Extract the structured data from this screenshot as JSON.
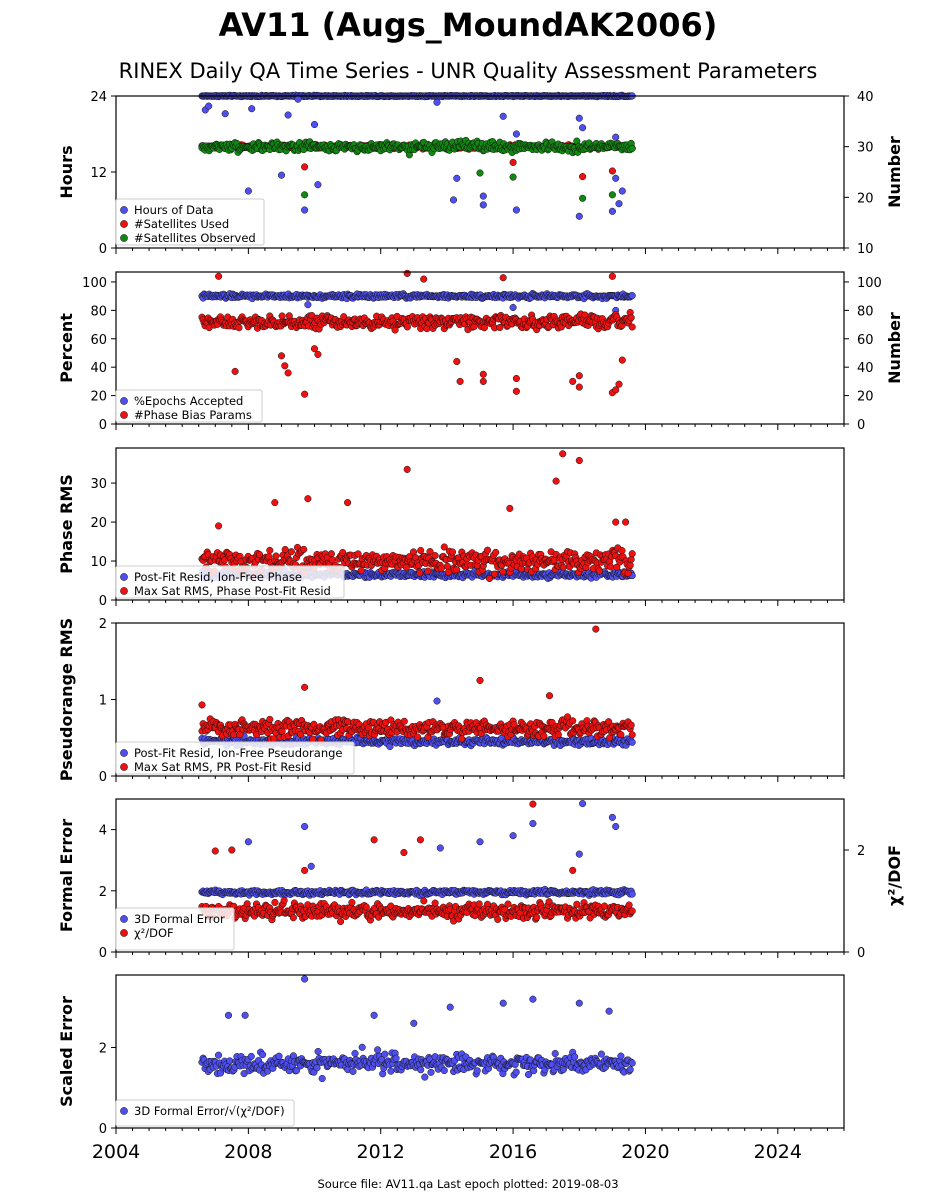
{
  "title": "AV11 (Augs_MoundAK2006)",
  "subtitle": "RINEX Daily QA Time Series - UNR Quality Assessment Parameters",
  "footer": "Source file: AV11.qa Last epoch plotted: 2019-08-03",
  "colors": {
    "blue": "#4f4ff0",
    "red": "#ee1111",
    "green": "#118811",
    "edge": "#111111"
  },
  "chart_data": [
    {
      "type": "scatter",
      "ylabel": "Hours",
      "ylabel_right": "Number",
      "xlim": [
        2004,
        2026
      ],
      "ylim": [
        0,
        24
      ],
      "ylim_right": [
        10,
        40
      ],
      "yticks": [
        0,
        12,
        24
      ],
      "yticks_right": [
        10,
        20,
        30,
        40
      ],
      "grid": false,
      "legend_position": "lower-left",
      "legend": [
        "Hours of Data",
        "#Satellites Used",
        "#Satellites Observed"
      ],
      "x_range": [
        2006.6,
        2019.6
      ],
      "series": [
        {
          "name": "Hours of Data",
          "color": "blue",
          "axis": "left",
          "typical": 24.0,
          "spread": 0.1,
          "outliers": [
            [
              2006.7,
              21.8
            ],
            [
              2006.8,
              22.4
            ],
            [
              2007.3,
              21.2
            ],
            [
              2008.0,
              9.0
            ],
            [
              2008.1,
              22.0
            ],
            [
              2009.0,
              11.5
            ],
            [
              2009.2,
              21.0
            ],
            [
              2009.5,
              23.5
            ],
            [
              2009.7,
              6.0
            ],
            [
              2010.0,
              19.5
            ],
            [
              2010.1,
              10.0
            ],
            [
              2013.7,
              23.0
            ],
            [
              2014.2,
              7.6
            ],
            [
              2014.3,
              11.0
            ],
            [
              2015.1,
              6.8
            ],
            [
              2015.1,
              8.2
            ],
            [
              2015.7,
              20.8
            ],
            [
              2016.1,
              6.0
            ],
            [
              2016.1,
              18.0
            ],
            [
              2018.0,
              20.5
            ],
            [
              2018.0,
              5.0
            ],
            [
              2018.1,
              19.0
            ],
            [
              2019.0,
              5.8
            ],
            [
              2019.1,
              11.0
            ],
            [
              2019.1,
              17.5
            ],
            [
              2019.2,
              7.0
            ],
            [
              2019.3,
              9.0
            ]
          ]
        },
        {
          "name": "#Satellites Used",
          "color": "red",
          "axis": "right",
          "typical": 30.0,
          "spread": 0.4,
          "outliers": [
            [
              2009.7,
              26.0
            ],
            [
              2016.0,
              26.9
            ],
            [
              2018.1,
              24.1
            ],
            [
              2019.0,
              25.2
            ]
          ]
        },
        {
          "name": "#Satellites Observed",
          "color": "green",
          "axis": "right",
          "typical": 30.0,
          "spread": 1.0,
          "outliers": [
            [
              2009.7,
              20.5
            ],
            [
              2015.0,
              24.8
            ],
            [
              2016.0,
              24.0
            ],
            [
              2018.1,
              19.8
            ],
            [
              2019.0,
              20.5
            ]
          ]
        }
      ]
    },
    {
      "type": "scatter",
      "ylabel": "Percent",
      "ylabel_right": "Number",
      "xlim": [
        2004,
        2026
      ],
      "ylim": [
        0,
        107
      ],
      "ylim_right": [
        0,
        107
      ],
      "yticks": [
        0,
        20,
        40,
        60,
        80,
        100
      ],
      "yticks_right": [
        0,
        20,
        40,
        60,
        80,
        100
      ],
      "grid": false,
      "legend_position": "lower-left",
      "legend": [
        "%Epochs Accepted",
        "#Phase Bias Params"
      ],
      "x_range": [
        2006.6,
        2019.6
      ],
      "series": [
        {
          "name": "%Epochs Accepted",
          "color": "blue",
          "axis": "left",
          "typical": 90,
          "spread": 1.5,
          "outliers": [
            [
              2009.8,
              84
            ],
            [
              2016.0,
              82
            ],
            [
              2019.1,
              80
            ]
          ]
        },
        {
          "name": "#Phase Bias Params",
          "color": "red",
          "axis": "right",
          "typical": 72,
          "spread": 5,
          "outliers": [
            [
              2007.1,
              104
            ],
            [
              2007.6,
              37
            ],
            [
              2009.0,
              48
            ],
            [
              2009.1,
              41
            ],
            [
              2009.2,
              36
            ],
            [
              2009.7,
              21
            ],
            [
              2010.0,
              53
            ],
            [
              2010.1,
              49
            ],
            [
              2012.8,
              106
            ],
            [
              2013.3,
              102
            ],
            [
              2014.3,
              44
            ],
            [
              2014.4,
              30
            ],
            [
              2015.1,
              35
            ],
            [
              2015.1,
              30
            ],
            [
              2015.7,
              103
            ],
            [
              2016.1,
              23
            ],
            [
              2016.1,
              32
            ],
            [
              2017.8,
              30
            ],
            [
              2018.0,
              34
            ],
            [
              2018.0,
              26
            ],
            [
              2019.0,
              104
            ],
            [
              2019.0,
              22
            ],
            [
              2019.1,
              24
            ],
            [
              2019.2,
              28
            ],
            [
              2019.3,
              45
            ]
          ]
        }
      ]
    },
    {
      "type": "scatter",
      "ylabel": "Phase RMS",
      "xlim": [
        2004,
        2026
      ],
      "ylim": [
        0,
        39
      ],
      "yticks": [
        0,
        10,
        20,
        30
      ],
      "grid": false,
      "legend_position": "lower-left",
      "legend": [
        "Post-Fit Resid, Ion-Free Phase",
        "Max Sat RMS, Phase Post-Fit Resid"
      ],
      "x_range": [
        2006.6,
        2019.6
      ],
      "series": [
        {
          "name": "Post-Fit Resid, Ion-Free Phase",
          "color": "blue",
          "typical": 6.5,
          "spread": 0.8,
          "outliers": []
        },
        {
          "name": "Max Sat RMS, Phase Post-Fit Resid",
          "color": "red",
          "typical": 10,
          "spread": 3,
          "outliers": [
            [
              2007.1,
              19
            ],
            [
              2008.8,
              25
            ],
            [
              2009.8,
              26
            ],
            [
              2011.0,
              25
            ],
            [
              2012.8,
              33.5
            ],
            [
              2015.9,
              23.5
            ],
            [
              2017.3,
              30.5
            ],
            [
              2017.5,
              37.5
            ],
            [
              2018.0,
              35.8
            ],
            [
              2019.1,
              20
            ],
            [
              2019.4,
              20
            ]
          ]
        }
      ]
    },
    {
      "type": "scatter",
      "ylabel": "Pseudorange RMS",
      "xlim": [
        2004,
        2026
      ],
      "ylim": [
        0,
        2
      ],
      "yticks": [
        0,
        1,
        2
      ],
      "grid": false,
      "legend_position": "lower-left",
      "legend": [
        "Post-Fit Resid, Ion-Free Pseudorange",
        "Max Sat RMS, PR Post-Fit Resid"
      ],
      "x_range": [
        2006.6,
        2019.6
      ],
      "series": [
        {
          "name": "Post-Fit Resid, Ion-Free Pseudorange",
          "color": "blue",
          "typical": 0.45,
          "spread": 0.05,
          "outliers": [
            [
              2013.7,
              0.98
            ]
          ]
        },
        {
          "name": "Max Sat RMS, PR Post-Fit Resid",
          "color": "red",
          "typical": 0.62,
          "spread": 0.12,
          "outliers": [
            [
              2006.6,
              0.93
            ],
            [
              2009.7,
              1.16
            ],
            [
              2015.0,
              1.25
            ],
            [
              2017.1,
              1.05
            ],
            [
              2018.5,
              1.92
            ]
          ]
        }
      ]
    },
    {
      "type": "scatter",
      "ylabel": "Formal Error",
      "ylabel_right": "χ²/DOF",
      "xlim": [
        2004,
        2026
      ],
      "ylim": [
        0,
        5
      ],
      "ylim_right": [
        0,
        3
      ],
      "yticks": [
        0,
        2,
        4
      ],
      "yticks_right": [
        0,
        2
      ],
      "grid": false,
      "legend_position": "lower-left",
      "legend": [
        "3D Formal Error",
        "χ²/DOF"
      ],
      "x_range": [
        2006.6,
        2019.6
      ],
      "series": [
        {
          "name": "3D Formal Error",
          "color": "blue",
          "axis": "left",
          "typical": 1.95,
          "spread": 0.08,
          "outliers": [
            [
              2008.0,
              3.6
            ],
            [
              2009.7,
              4.1
            ],
            [
              2009.9,
              2.8
            ],
            [
              2013.8,
              3.4
            ],
            [
              2015.0,
              3.6
            ],
            [
              2016.0,
              3.8
            ],
            [
              2016.6,
              4.2
            ],
            [
              2018.0,
              3.2
            ],
            [
              2018.1,
              4.85
            ],
            [
              2019.0,
              4.4
            ],
            [
              2019.1,
              4.1
            ]
          ]
        },
        {
          "name": "χ²/DOF",
          "color": "red",
          "axis": "right",
          "typical": 0.8,
          "spread": 0.15,
          "outliers": [
            [
              2007.0,
              1.98
            ],
            [
              2007.5,
              2.0
            ],
            [
              2009.7,
              1.6
            ],
            [
              2011.8,
              2.2
            ],
            [
              2012.7,
              1.95
            ],
            [
              2013.2,
              2.2
            ],
            [
              2016.6,
              2.9
            ],
            [
              2017.8,
              1.6
            ]
          ]
        }
      ]
    },
    {
      "type": "scatter",
      "ylabel": "Scaled Error",
      "xlim": [
        2004,
        2026
      ],
      "ylim": [
        0,
        3.8
      ],
      "yticks": [
        0,
        2
      ],
      "xticks": [
        2004,
        2008,
        2012,
        2016,
        2020,
        2024
      ],
      "grid": false,
      "legend_position": "lower-left",
      "legend": [
        "3D Formal Error/√(χ²/DOF)"
      ],
      "x_range": [
        2006.6,
        2019.6
      ],
      "series": [
        {
          "name": "3D Formal Error/√(χ²/DOF)",
          "color": "blue",
          "typical": 1.6,
          "spread": 0.25,
          "outliers": [
            [
              2007.4,
              2.8
            ],
            [
              2007.9,
              2.8
            ],
            [
              2009.7,
              3.7
            ],
            [
              2011.8,
              2.8
            ],
            [
              2013.0,
              2.6
            ],
            [
              2014.1,
              3.0
            ],
            [
              2015.7,
              3.1
            ],
            [
              2016.6,
              3.2
            ],
            [
              2018.0,
              3.1
            ],
            [
              2018.9,
              2.9
            ]
          ]
        }
      ]
    }
  ]
}
